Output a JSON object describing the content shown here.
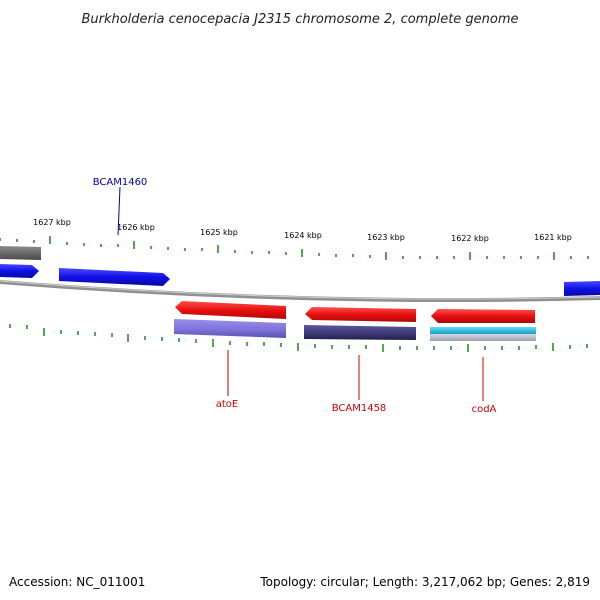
{
  "title": "Burkholderia cenocepacia J2315 chromosome 2, complete genome",
  "footer": {
    "accession": "Accession: NC_011001",
    "summary": "Topology: circular; Length: 3,217,062 bp; Genes: 2,819"
  },
  "ruler_labels": [
    "1627 kbp",
    "1626 kbp",
    "1625 kbp",
    "1624 kbp",
    "1623 kbp",
    "1622 kbp",
    "1621 kbp"
  ],
  "gene_labels": {
    "top": [
      "BCAM1460"
    ],
    "bottom": [
      "atoE",
      "BCAM1458",
      "codA"
    ]
  },
  "colors": {
    "forward_gene": "#1010e8",
    "reverse_gene": "#e81010",
    "forward_label": "#0000aa",
    "reverse_label": "#cc0000",
    "backbone": "#808080",
    "tick": "#1a8a1a",
    "cog_purple": "#7a6fd6",
    "cog_navy": "#3a3670",
    "cog_cyan": "#22b8e0",
    "cog_grey": "#b8b8c8",
    "grey_gene": "#6a6a6a"
  }
}
